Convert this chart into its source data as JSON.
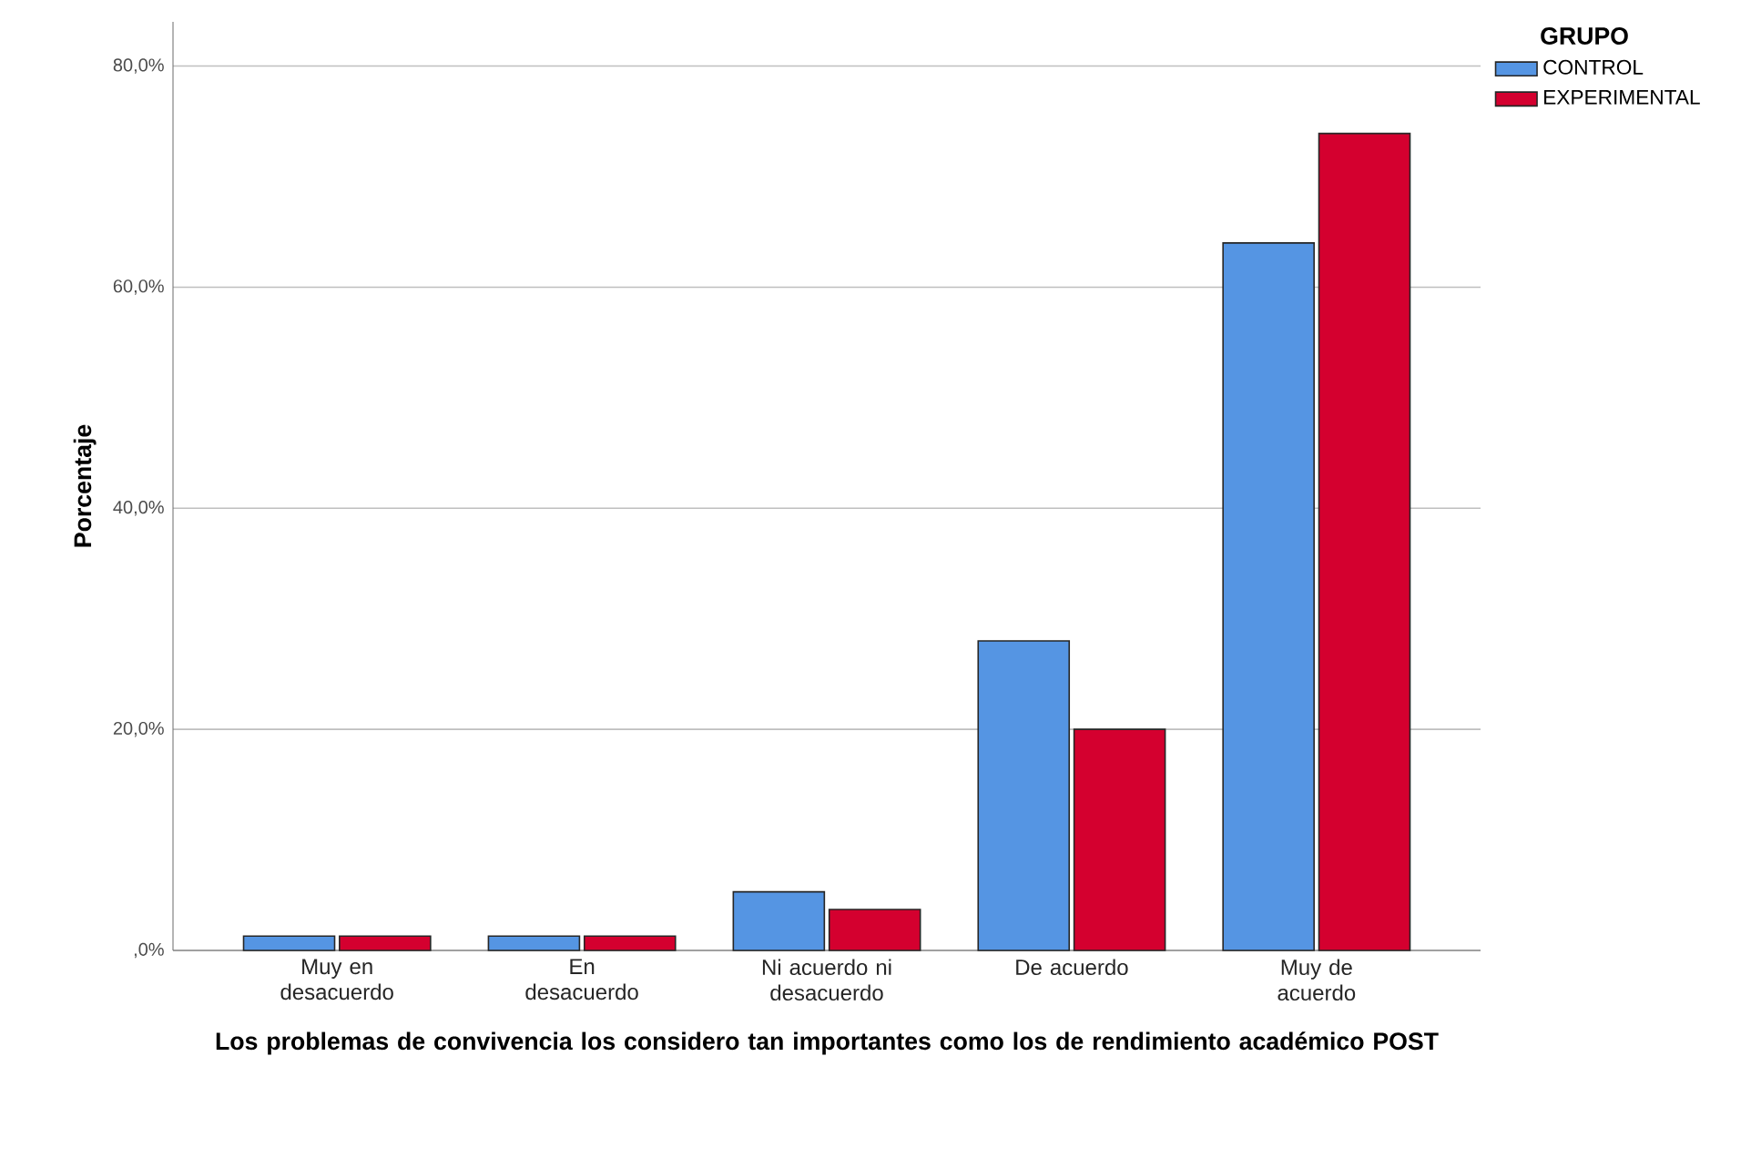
{
  "chart_data": {
    "type": "bar",
    "xlabel": "Los problemas de convivencia los considero tan importantes como los de rendimiento académico POST",
    "ylabel": "Porcentaje",
    "legend_title": "GRUPO",
    "categories": [
      "Muy en desacuerdo",
      "En desacuerdo",
      "Ni acuerdo ni desacuerdo",
      "De acuerdo",
      "Muy de acuerdo"
    ],
    "series": [
      {
        "name": "CONTROL",
        "color": "#5595e3",
        "values": [
          1.3,
          1.3,
          5.3,
          28.0,
          64.0
        ]
      },
      {
        "name": "EXPERIMENTAL",
        "color": "#d4002f",
        "values": [
          1.3,
          1.3,
          3.7,
          20.0,
          73.9
        ]
      }
    ],
    "ylim": [
      0,
      84
    ],
    "yticks": [
      {
        "value": 0,
        "label": ",0%"
      },
      {
        "value": 20,
        "label": "20,0%"
      },
      {
        "value": 40,
        "label": "40,0%"
      },
      {
        "value": 60,
        "label": "60,0%"
      },
      {
        "value": 80,
        "label": "80,0%"
      }
    ],
    "grid": "y",
    "legend": "top right"
  }
}
